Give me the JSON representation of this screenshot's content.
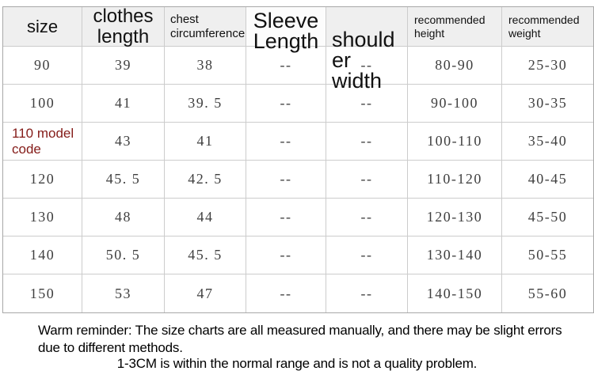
{
  "table": {
    "headers": [
      {
        "label": "size"
      },
      {
        "label": "clothes length"
      },
      {
        "label": "chest circumference"
      },
      {
        "label": "Sleeve Length"
      },
      {
        "label": "shoulder width",
        "display": "should\ner\nwidth"
      },
      {
        "label": "recommended height"
      },
      {
        "label": "recommended weight"
      }
    ],
    "rows": [
      [
        "90",
        "39",
        "38",
        "--",
        "--",
        "80-90",
        "25-30"
      ],
      [
        "100",
        "41",
        "39. 5",
        "--",
        "--",
        "90-100",
        "30-35"
      ],
      [
        "110 model code",
        "43",
        "41",
        "--",
        "--",
        "100-110",
        "35-40"
      ],
      [
        "120",
        "45. 5",
        "42. 5",
        "--",
        "--",
        "110-120",
        "40-45"
      ],
      [
        "130",
        "48",
        "44",
        "--",
        "--",
        "120-130",
        "45-50"
      ],
      [
        "140",
        "50. 5",
        "45. 5",
        "--",
        "--",
        "130-140",
        "50-55"
      ],
      [
        "150",
        "53",
        "47",
        "--",
        "--",
        "140-150",
        "55-60"
      ]
    ]
  },
  "notes": {
    "warm_reminder": "Warm reminder: The size charts are all measured manually, and there may be slight errors due to different methods.",
    "tolerance": "1-3CM is within the normal range and is not a quality problem."
  },
  "colors": {
    "header_bg": "#efefef",
    "inner_border": "#cccccc",
    "outer_border": "#a8a8a8",
    "model_code_red": "#841b18",
    "number_text": "#3f3f3f"
  }
}
